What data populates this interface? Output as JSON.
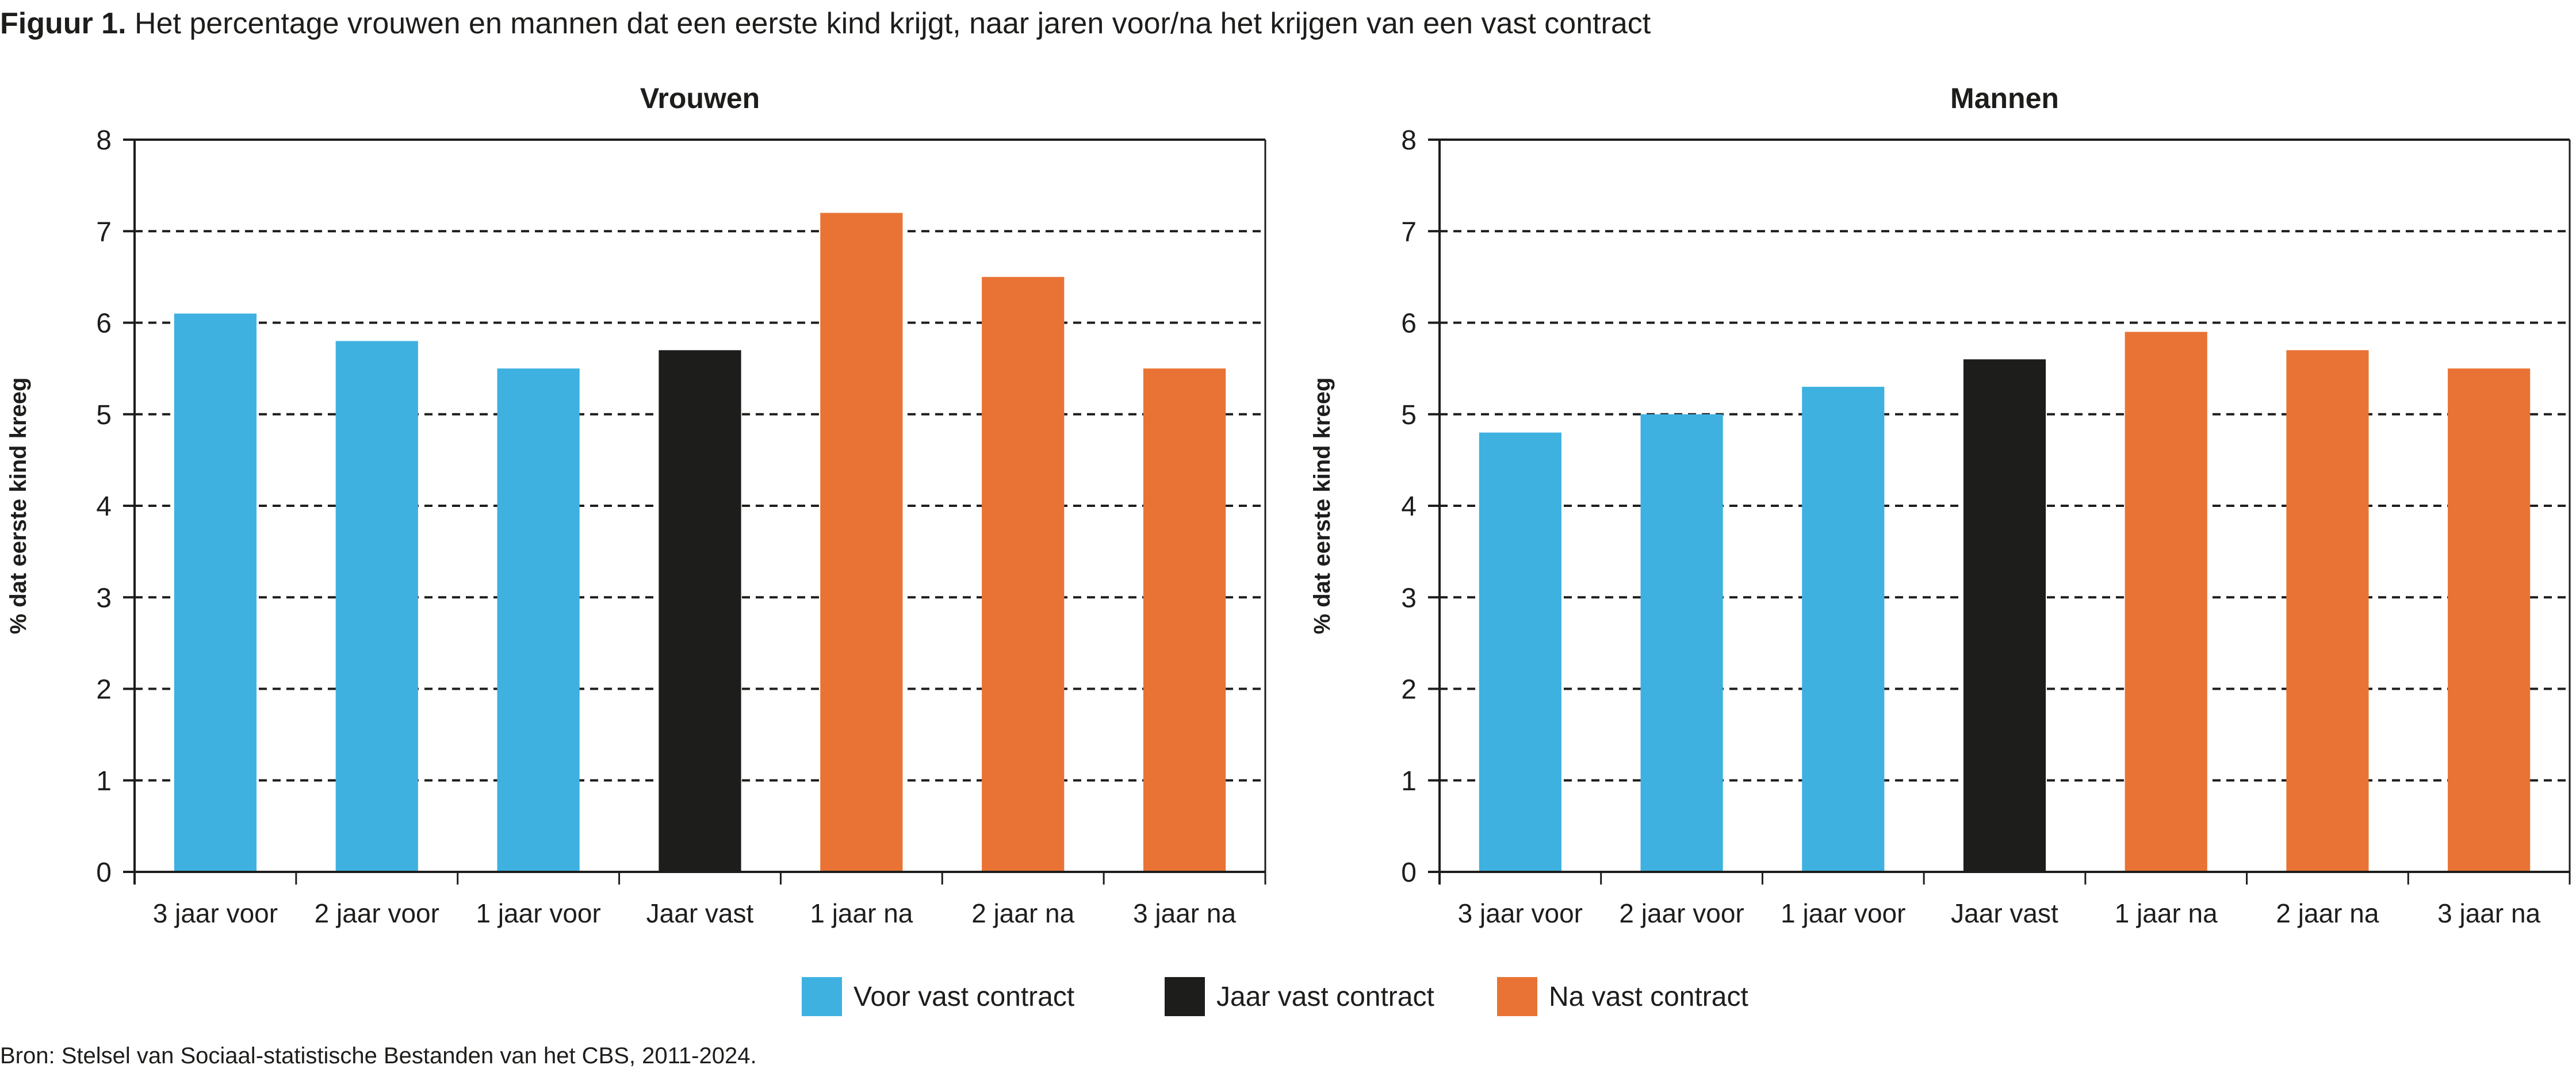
{
  "figure": {
    "label": "Figuur 1.",
    "title": " Het percentage vrouwen en mannen dat een eerste kind krijgt, naar jaren voor/na het krijgen van een vast contract",
    "source": "Bron: Stelsel van Sociaal-statistische Bestanden van het CBS, 2011-2024."
  },
  "colors": {
    "voor": "#3eb1e1",
    "jaar": "#1d1d1b",
    "na": "#e97334"
  },
  "legend": [
    {
      "label": "Voor vast contract",
      "group": "voor"
    },
    {
      "label": "Jaar vast contract",
      "group": "jaar"
    },
    {
      "label": "Na vast contract",
      "group": "na"
    }
  ],
  "chart_data": [
    {
      "type": "bar",
      "title": "Vrouwen",
      "ylabel": "% dat eerste kind kreeg",
      "xlabel": "",
      "ylim": [
        0,
        8
      ],
      "yticks": [
        "0",
        "1",
        "2",
        "3",
        "4",
        "5",
        "6",
        "7",
        "8"
      ],
      "grid": true,
      "categories": [
        "3 jaar voor",
        "2 jaar voor",
        "1 jaar voor",
        "Jaar vast",
        "1 jaar na",
        "2 jaar na",
        "3 jaar na"
      ],
      "groups": [
        "voor",
        "voor",
        "voor",
        "jaar",
        "na",
        "na",
        "na"
      ],
      "values": [
        6.1,
        5.8,
        5.5,
        5.7,
        7.2,
        6.5,
        5.5
      ]
    },
    {
      "type": "bar",
      "title": "Mannen",
      "ylabel": "% dat eerste kind kreeg",
      "xlabel": "",
      "ylim": [
        0,
        8
      ],
      "yticks": [
        "0",
        "1",
        "2",
        "3",
        "4",
        "5",
        "6",
        "7",
        "8"
      ],
      "grid": true,
      "categories": [
        "3 jaar voor",
        "2 jaar voor",
        "1 jaar voor",
        "Jaar vast",
        "1 jaar na",
        "2 jaar na",
        "3 jaar na"
      ],
      "groups": [
        "voor",
        "voor",
        "voor",
        "jaar",
        "na",
        "na",
        "na"
      ],
      "values": [
        4.8,
        5.0,
        5.3,
        5.6,
        5.9,
        5.7,
        5.5
      ]
    }
  ]
}
